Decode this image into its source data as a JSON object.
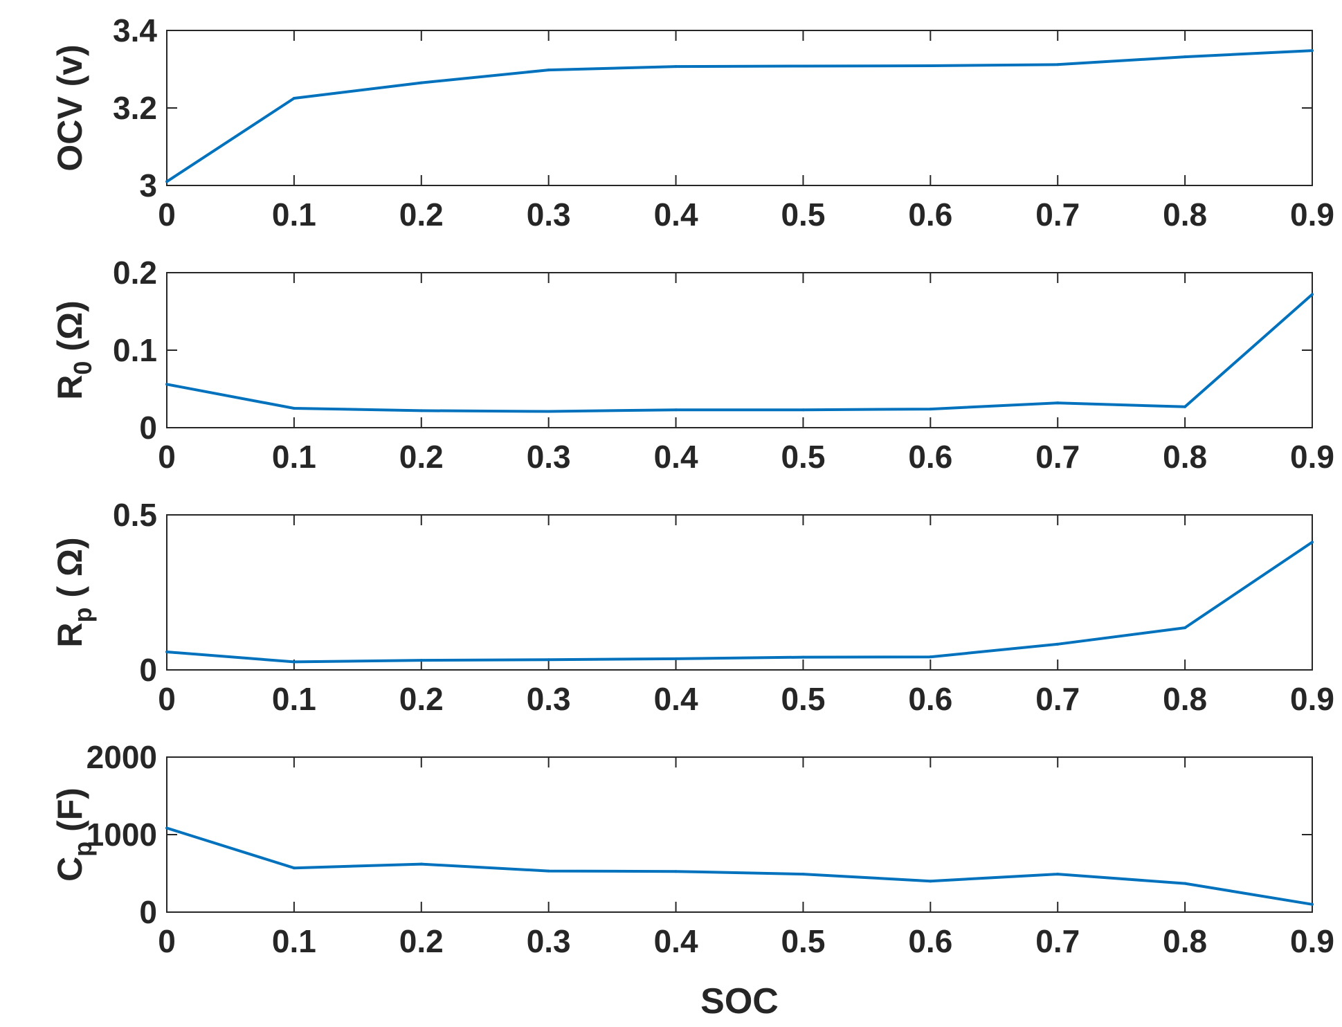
{
  "chart_data": [
    {
      "type": "line",
      "ylabel": {
        "base": "OCV (v)",
        "sub": "",
        "suffix": ""
      },
      "x": [
        0,
        0.1,
        0.2,
        0.3,
        0.4,
        0.5,
        0.6,
        0.7,
        0.8,
        0.9
      ],
      "y": [
        3.01,
        3.225,
        3.265,
        3.298,
        3.307,
        3.308,
        3.309,
        3.312,
        3.332,
        3.348
      ],
      "xlim": [
        0,
        0.9
      ],
      "ylim": [
        3,
        3.4
      ],
      "xticks": [
        "0",
        "0.1",
        "0.2",
        "0.3",
        "0.4",
        "0.5",
        "0.6",
        "0.7",
        "0.8",
        "0.9"
      ],
      "yticks": [
        "3",
        "3.2",
        "3.4"
      ],
      "ytick_values": [
        3,
        3.2,
        3.4
      ],
      "line_color": "#0072BD",
      "grid": false
    },
    {
      "type": "line",
      "ylabel": {
        "base": "R",
        "sub": "0",
        "suffix": " (Ω)"
      },
      "x": [
        0,
        0.1,
        0.2,
        0.3,
        0.4,
        0.5,
        0.6,
        0.7,
        0.8,
        0.9
      ],
      "y": [
        0.056,
        0.025,
        0.022,
        0.021,
        0.023,
        0.023,
        0.024,
        0.032,
        0.027,
        0.172
      ],
      "xlim": [
        0,
        0.9
      ],
      "ylim": [
        0,
        0.2
      ],
      "xticks": [
        "0",
        "0.1",
        "0.2",
        "0.3",
        "0.4",
        "0.5",
        "0.6",
        "0.7",
        "0.8",
        "0.9"
      ],
      "yticks": [
        "0",
        "0.1",
        "0.2"
      ],
      "ytick_values": [
        0,
        0.1,
        0.2
      ],
      "line_color": "#0072BD",
      "grid": false
    },
    {
      "type": "line",
      "ylabel": {
        "base": "R",
        "sub": "p",
        "suffix": " ( Ω)"
      },
      "x": [
        0,
        0.1,
        0.2,
        0.3,
        0.4,
        0.5,
        0.6,
        0.7,
        0.8,
        0.9
      ],
      "y": [
        0.058,
        0.026,
        0.031,
        0.033,
        0.036,
        0.041,
        0.042,
        0.083,
        0.136,
        0.412
      ],
      "xlim": [
        0,
        0.9
      ],
      "ylim": [
        0,
        0.5
      ],
      "xticks": [
        "0",
        "0.1",
        "0.2",
        "0.3",
        "0.4",
        "0.5",
        "0.6",
        "0.7",
        "0.8",
        "0.9"
      ],
      "yticks": [
        "0",
        "0.5"
      ],
      "ytick_values": [
        0,
        0.5
      ],
      "line_color": "#0072BD",
      "grid": false
    },
    {
      "type": "line",
      "ylabel": {
        "base": "C",
        "sub": "p",
        "suffix": " (F)"
      },
      "xlabel": "SOC",
      "x": [
        0,
        0.1,
        0.2,
        0.3,
        0.4,
        0.5,
        0.6,
        0.7,
        0.8,
        0.9
      ],
      "y": [
        1085,
        570,
        620,
        530,
        525,
        490,
        400,
        490,
        370,
        100
      ],
      "xlim": [
        0,
        0.9
      ],
      "ylim": [
        0,
        2000
      ],
      "xticks": [
        "0",
        "0.1",
        "0.2",
        "0.3",
        "0.4",
        "0.5",
        "0.6",
        "0.7",
        "0.8",
        "0.9"
      ],
      "yticks": [
        "0",
        "1000",
        "2000"
      ],
      "ytick_values": [
        0,
        1000,
        2000
      ],
      "line_color": "#0072BD",
      "grid": false
    }
  ]
}
